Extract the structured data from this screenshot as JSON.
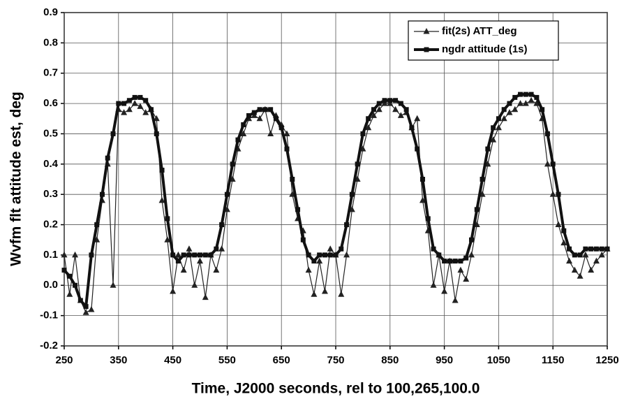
{
  "chart_data": {
    "type": "line",
    "xlabel": "Time, J2000 seconds, rel to 100,265,100.0",
    "ylabel": "Wvfm flt attitude est, deg",
    "x": [
      250,
      260,
      270,
      280,
      290,
      300,
      310,
      320,
      330,
      340,
      350,
      360,
      370,
      380,
      390,
      400,
      410,
      420,
      430,
      440,
      450,
      460,
      470,
      480,
      490,
      500,
      510,
      520,
      530,
      540,
      550,
      560,
      570,
      580,
      590,
      600,
      610,
      620,
      630,
      640,
      650,
      660,
      670,
      680,
      690,
      700,
      710,
      720,
      730,
      740,
      750,
      760,
      770,
      780,
      790,
      800,
      810,
      820,
      830,
      840,
      850,
      860,
      870,
      880,
      890,
      900,
      910,
      920,
      930,
      940,
      950,
      960,
      970,
      980,
      990,
      1000,
      1010,
      1020,
      1030,
      1040,
      1050,
      1060,
      1070,
      1080,
      1090,
      1100,
      1110,
      1120,
      1130,
      1140,
      1150,
      1160,
      1170,
      1180,
      1190,
      1200,
      1210,
      1220,
      1230,
      1240,
      1250
    ],
    "series": [
      {
        "name": "fit(2s) ATT_deg",
        "color": "#222222",
        "marker": "triangle",
        "values": [
          0.1,
          -0.03,
          0.1,
          -0.05,
          -0.09,
          -0.08,
          0.15,
          0.28,
          0.4,
          0.0,
          0.58,
          0.57,
          0.58,
          0.6,
          0.59,
          0.57,
          0.58,
          0.55,
          0.28,
          0.15,
          -0.02,
          0.1,
          0.05,
          0.12,
          0.0,
          0.08,
          -0.04,
          0.1,
          0.05,
          0.12,
          0.25,
          0.35,
          0.45,
          0.5,
          0.55,
          0.56,
          0.55,
          0.58,
          0.5,
          0.56,
          0.53,
          0.5,
          0.3,
          0.22,
          0.18,
          0.05,
          -0.03,
          0.08,
          -0.02,
          0.12,
          0.1,
          -0.03,
          0.1,
          0.25,
          0.35,
          0.45,
          0.52,
          0.56,
          0.58,
          0.6,
          0.6,
          0.58,
          0.56,
          0.57,
          0.52,
          0.55,
          0.28,
          0.18,
          0.0,
          0.1,
          -0.02,
          0.08,
          -0.05,
          0.05,
          0.02,
          0.1,
          0.2,
          0.3,
          0.4,
          0.48,
          0.52,
          0.55,
          0.57,
          0.58,
          0.6,
          0.6,
          0.61,
          0.6,
          0.55,
          0.4,
          0.3,
          0.2,
          0.14,
          0.08,
          0.05,
          0.03,
          0.1,
          0.05,
          0.08,
          0.1,
          0.12
        ]
      },
      {
        "name": "ngdr attitude (1s)",
        "color": "#111111",
        "marker": "square",
        "values": [
          0.05,
          0.03,
          0.0,
          -0.05,
          -0.07,
          0.1,
          0.2,
          0.3,
          0.42,
          0.5,
          0.6,
          0.6,
          0.61,
          0.62,
          0.62,
          0.61,
          0.58,
          0.5,
          0.38,
          0.22,
          0.1,
          0.08,
          0.1,
          0.1,
          0.1,
          0.1,
          0.1,
          0.1,
          0.12,
          0.2,
          0.3,
          0.4,
          0.48,
          0.53,
          0.56,
          0.57,
          0.58,
          0.58,
          0.58,
          0.55,
          0.52,
          0.45,
          0.35,
          0.25,
          0.15,
          0.1,
          0.08,
          0.1,
          0.1,
          0.1,
          0.1,
          0.12,
          0.2,
          0.3,
          0.4,
          0.5,
          0.55,
          0.58,
          0.6,
          0.61,
          0.61,
          0.61,
          0.6,
          0.58,
          0.52,
          0.45,
          0.35,
          0.22,
          0.12,
          0.1,
          0.08,
          0.08,
          0.08,
          0.08,
          0.09,
          0.15,
          0.25,
          0.35,
          0.45,
          0.52,
          0.55,
          0.58,
          0.6,
          0.62,
          0.63,
          0.63,
          0.63,
          0.62,
          0.58,
          0.5,
          0.4,
          0.3,
          0.18,
          0.12,
          0.1,
          0.1,
          0.12,
          0.12,
          0.12,
          0.12,
          0.12
        ]
      }
    ],
    "xlim": [
      250,
      1250
    ],
    "xticks": [
      250,
      350,
      450,
      550,
      650,
      750,
      850,
      950,
      1050,
      1150,
      1250
    ],
    "ylim": [
      -0.2,
      0.9
    ],
    "yticks": [
      -0.2,
      -0.1,
      {
        "value": 0,
        "label": "0.0"
      },
      0.1,
      0.2,
      0.3,
      0.4,
      0.5,
      0.6,
      0.7,
      0.8,
      0.9
    ],
    "grid": true,
    "legend": "upper right"
  }
}
